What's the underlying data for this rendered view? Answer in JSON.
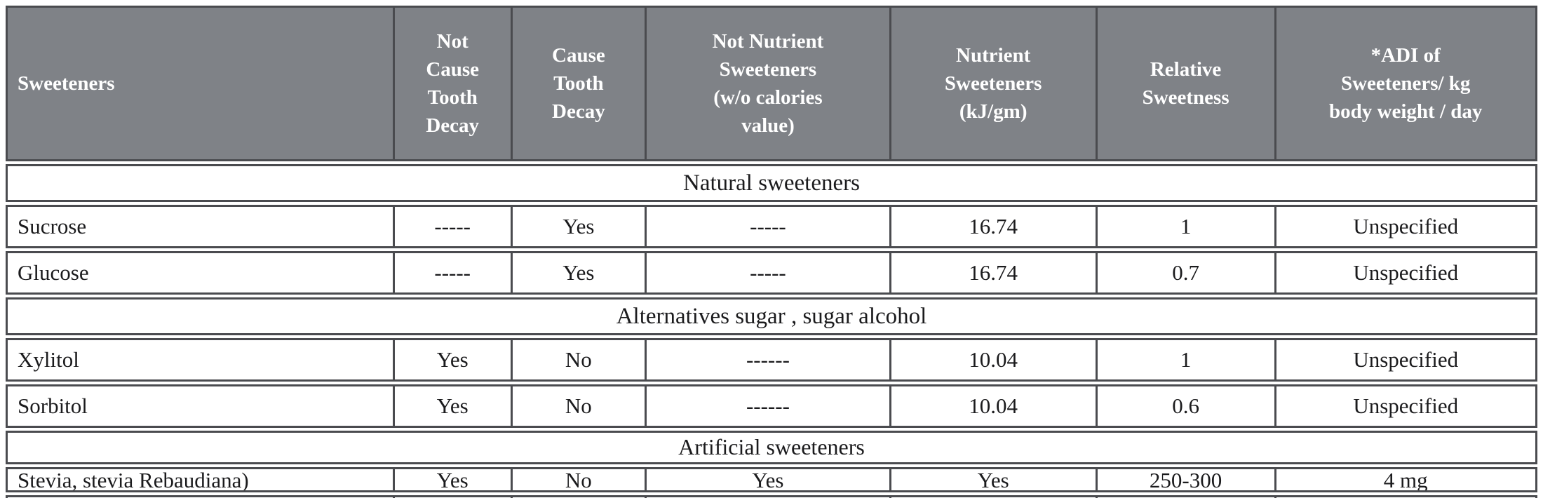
{
  "table": {
    "columns": [
      {
        "label": "Sweeteners"
      },
      {
        "label": "Not\nCause\nTooth\nDecay"
      },
      {
        "label": "Cause\nTooth\nDecay"
      },
      {
        "label": "Not Nutrient\nSweeteners\n(w/o calories\nvalue)"
      },
      {
        "label": "Nutrient\nSweeteners\n(kJ/gm)"
      },
      {
        "label": "Relative\nSweetness"
      },
      {
        "label": "*ADI of\nSweeteners/ kg\nbody weight / day"
      }
    ],
    "sections": [
      {
        "title": "Natural sweeteners",
        "rows": [
          {
            "cells": [
              "Sucrose",
              "-----",
              "Yes",
              "-----",
              "16.74",
              "1",
              "Unspecified"
            ]
          },
          {
            "cells": [
              "Glucose",
              "-----",
              "Yes",
              "-----",
              "16.74",
              "0.7",
              "Unspecified"
            ]
          }
        ]
      },
      {
        "title": "Alternatives sugar , sugar alcohol",
        "rows": [
          {
            "cells": [
              "Xylitol",
              "Yes",
              "No",
              "------",
              "10.04",
              "1",
              "Unspecified"
            ]
          },
          {
            "cells": [
              "Sorbitol",
              "Yes",
              "No",
              "------",
              "10.04",
              "0.6",
              "Unspecified"
            ]
          }
        ]
      },
      {
        "title": "Artificial sweeteners",
        "rows": [
          {
            "cells": [
              "Stevia, stevia Rebaudiana)",
              "Yes",
              "No",
              "Yes",
              "Yes",
              "250-300",
              "4 mg"
            ]
          }
        ]
      }
    ],
    "partial_next_row_visible": true,
    "colors": {
      "header_bg": "#7f8287",
      "header_text": "#ffffff",
      "body_text": "#1b1b1d",
      "border": "#4a4b4f",
      "page_bg": "#ffffff"
    }
  }
}
